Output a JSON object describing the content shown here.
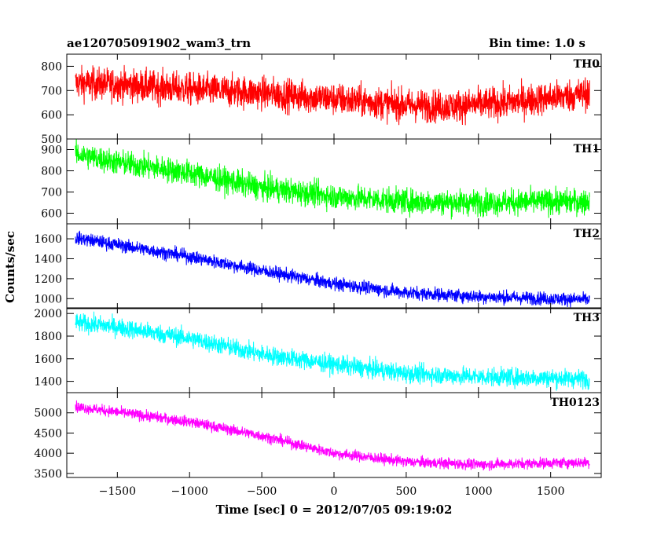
{
  "header": {
    "title": "ae120705091902_wam3_trn",
    "bin_time": "Bin time: 1.0 s"
  },
  "chart_data": {
    "type": "line",
    "title": "ae120705091902_wam3_trn",
    "subtitle": "Bin time: 1.0 s",
    "xlabel": "Time [sec] 0 = 2012/07/05 09:19:02",
    "ylabel": "Counts/sec",
    "xlim": [
      -1850,
      1850
    ],
    "x_ticks": [
      -1500,
      -1000,
      -500,
      0,
      500,
      1000,
      1500
    ],
    "x_tick_labels": [
      "−1500",
      "−1000",
      "−500",
      "0",
      "500",
      "1000",
      "1500"
    ],
    "data_x_range": [
      -1790,
      1770
    ],
    "grid": false,
    "panels": [
      {
        "name": "TH0",
        "color": "#ff0000",
        "ylim": [
          500,
          850
        ],
        "y_ticks": [
          500,
          600,
          700,
          800
        ],
        "y_tick_labels": [
          "500",
          "600",
          "700",
          "800"
        ],
        "trend": {
          "x": [
            -1790,
            -1500,
            -1000,
            -500,
            0,
            500,
            800,
            1200,
            1500,
            1770
          ],
          "y": [
            730,
            725,
            705,
            690,
            665,
            640,
            635,
            650,
            670,
            690
          ]
        },
        "noise_amplitude": 45
      },
      {
        "name": "TH1",
        "color": "#00ff00",
        "ylim": [
          550,
          950
        ],
        "y_ticks": [
          600,
          700,
          800,
          900
        ],
        "y_tick_labels": [
          "600",
          "700",
          "800",
          "900"
        ],
        "trend": {
          "x": [
            -1790,
            -1500,
            -1000,
            -500,
            0,
            500,
            1000,
            1500,
            1770
          ],
          "y": [
            880,
            840,
            790,
            720,
            680,
            655,
            650,
            655,
            655
          ]
        },
        "noise_amplitude": 40
      },
      {
        "name": "TH2",
        "color": "#0000ff",
        "ylim": [
          900,
          1750
        ],
        "y_ticks": [
          1000,
          1200,
          1400,
          1600
        ],
        "y_tick_labels": [
          "1000",
          "1200",
          "1400",
          "1600"
        ],
        "trend": {
          "x": [
            -1790,
            -1500,
            -1000,
            -500,
            0,
            500,
            1000,
            1500,
            1770
          ],
          "y": [
            1610,
            1540,
            1420,
            1280,
            1150,
            1060,
            1020,
            1000,
            990
          ]
        },
        "noise_amplitude": 45
      },
      {
        "name": "TH3",
        "color": "#00ffff",
        "ylim": [
          1300,
          2050
        ],
        "y_ticks": [
          1400,
          1600,
          1800,
          2000
        ],
        "y_tick_labels": [
          "1400",
          "1600",
          "1800",
          "2000"
        ],
        "trend": {
          "x": [
            -1790,
            -1500,
            -1000,
            -500,
            0,
            500,
            1000,
            1500,
            1770
          ],
          "y": [
            1920,
            1880,
            1780,
            1640,
            1550,
            1470,
            1440,
            1430,
            1420
          ]
        },
        "noise_amplitude": 55
      },
      {
        "name": "TH0123",
        "color": "#ff00ff",
        "ylim": [
          3400,
          5500
        ],
        "y_ticks": [
          3500,
          4000,
          4500,
          5000
        ],
        "y_tick_labels": [
          "3500",
          "4000",
          "4500",
          "5000"
        ],
        "trend": {
          "x": [
            -1790,
            -1500,
            -1000,
            -500,
            0,
            500,
            1000,
            1500,
            1770
          ],
          "y": [
            5150,
            5020,
            4780,
            4430,
            4000,
            3790,
            3720,
            3760,
            3770
          ]
        },
        "noise_amplitude": 90
      }
    ]
  }
}
